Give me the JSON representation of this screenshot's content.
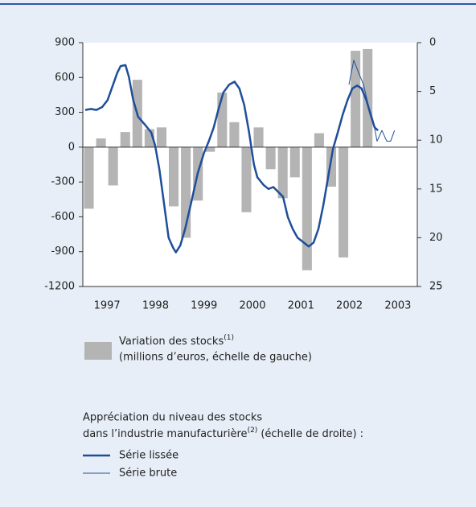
{
  "chart_data": {
    "type": "bar-line",
    "xlim": [
      1997,
      2003.9
    ],
    "xticks": [
      {
        "value": 1997.5,
        "label": "1997"
      },
      {
        "value": 1998.5,
        "label": "1998"
      },
      {
        "value": 1999.5,
        "label": "1999"
      },
      {
        "value": 2000.5,
        "label": "2000"
      },
      {
        "value": 2001.5,
        "label": "2001"
      },
      {
        "value": 2002.5,
        "label": "2002"
      },
      {
        "value": 2003.5,
        "label": "2003"
      }
    ],
    "ylim": [
      -1200,
      900
    ],
    "yticks": [
      -1200,
      -900,
      -600,
      -300,
      0,
      300,
      600,
      900
    ],
    "y2lim": [
      25,
      0
    ],
    "y2ticks": [
      0,
      5,
      10,
      15,
      20,
      25
    ],
    "series": [
      {
        "name": "Variation des stocks",
        "note_marker": "(1)",
        "detail": "(millions d’euros, échelle de gauche)",
        "type": "bar",
        "color": "#b4b4b4",
        "x": [
          1997.125,
          1997.375,
          1997.625,
          1997.875,
          1998.125,
          1998.375,
          1998.625,
          1998.875,
          1999.125,
          1999.375,
          1999.625,
          1999.875,
          2000.125,
          2000.375,
          2000.625,
          2000.875,
          2001.125,
          2001.375,
          2001.625,
          2001.875,
          2002.125,
          2002.375,
          2002.625,
          2002.875
        ],
        "values": [
          -530,
          75,
          -330,
          130,
          580,
          155,
          170,
          -510,
          -780,
          -460,
          -40,
          470,
          215,
          -560,
          170,
          -190,
          -440,
          -260,
          -1060,
          120,
          -340,
          -950,
          830,
          845
        ]
      },
      {
        "name": "Série lissée",
        "type": "line",
        "axis": "y2",
        "color": "#1f4e9a",
        "width": 2.5,
        "x": [
          1997.05,
          1997.17,
          1997.28,
          1997.4,
          1997.51,
          1997.61,
          1997.71,
          1997.78,
          1997.88,
          1997.95,
          1998.04,
          1998.14,
          1998.28,
          1998.41,
          1998.49,
          1998.58,
          1998.67,
          1998.77,
          1998.86,
          1998.92,
          1999.01,
          1999.11,
          1999.24,
          1999.37,
          1999.5,
          1999.6,
          1999.7,
          1999.8,
          1999.9,
          2000.02,
          2000.13,
          2000.23,
          2000.33,
          2000.43,
          2000.53,
          2000.6,
          2000.73,
          2000.83,
          2000.93,
          2001.03,
          2001.13,
          2001.23,
          2001.33,
          2001.43,
          2001.56,
          2001.66,
          2001.76,
          2001.86,
          2001.96,
          2002.06,
          2002.16,
          2002.26,
          2002.36,
          2002.46,
          2002.56,
          2002.66,
          2002.75,
          2002.85,
          2002.95,
          2003.02,
          2003.09
        ],
        "values": [
          6.9,
          6.8,
          6.9,
          6.6,
          5.9,
          4.5,
          3.1,
          2.4,
          2.3,
          3.5,
          5.9,
          7.6,
          8.4,
          9.2,
          10.5,
          13.0,
          16.3,
          20.0,
          21.0,
          21.5,
          20.8,
          19.1,
          16.3,
          13.4,
          11.3,
          10.1,
          8.7,
          6.8,
          5.1,
          4.3,
          4.0,
          4.7,
          6.4,
          9.2,
          12.5,
          13.8,
          14.6,
          15.0,
          14.8,
          15.3,
          15.8,
          17.9,
          19.1,
          20.0,
          20.5,
          20.9,
          20.5,
          19.1,
          16.7,
          13.8,
          10.9,
          9.2,
          7.4,
          5.9,
          4.7,
          4.4,
          4.7,
          5.9,
          7.6,
          8.7,
          9.0
        ]
      },
      {
        "name": "Série brute",
        "type": "line",
        "axis": "y2",
        "color": "#1f4e9a",
        "width": 1,
        "x": [
          2002.49,
          2002.59,
          2002.69,
          2002.79,
          2002.89,
          2002.99,
          2003.07,
          2003.17,
          2003.27,
          2003.35,
          2003.43
        ],
        "values": [
          4.3,
          1.8,
          3.1,
          4.3,
          6.4,
          8.0,
          10.1,
          9.0,
          10.1,
          10.1,
          9.0
        ]
      }
    ],
    "legend_group_title": [
      "Appréciation du niveau des stocks",
      "dans l’industrie manufacturière"
    ],
    "legend_group_marker": "(2)",
    "legend_group_suffix": "(échelle de droite) :"
  }
}
